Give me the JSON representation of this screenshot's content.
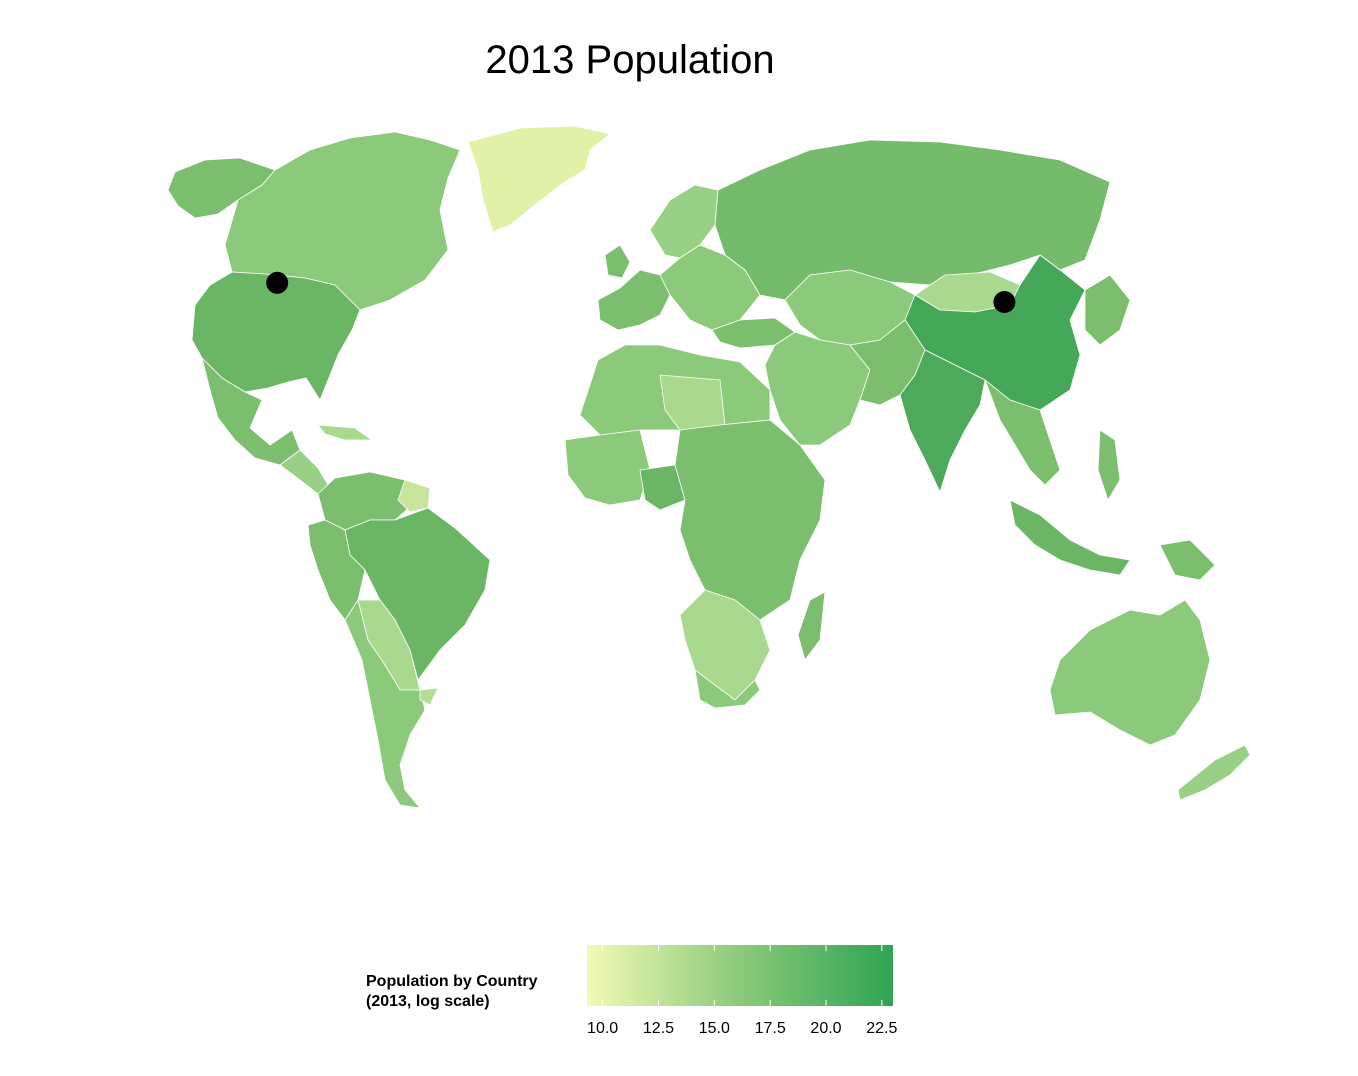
{
  "map": {
    "title": "2013 Population",
    "projection": "world choropleth",
    "markers": [
      {
        "name": "marker-united-states",
        "lon": -98,
        "lat": 39
      },
      {
        "name": "marker-china",
        "lon": 104,
        "lat": 35
      }
    ],
    "colors": {
      "low": "#f1fab4",
      "mid": "#8bca7a",
      "high": "#2ea453",
      "border": "#ffffff",
      "ocean": "#ffffff",
      "marker": "#000000"
    }
  },
  "legend": {
    "title_line1": "Population by Country",
    "title_line2": "(2013, log scale)",
    "ticks": [
      "10.0",
      "12.5",
      "15.0",
      "17.5",
      "20.0",
      "22.5"
    ],
    "tick_values": [
      10.0,
      12.5,
      15.0,
      17.5,
      20.0,
      22.5
    ],
    "range": [
      9.3,
      23.0
    ]
  }
}
